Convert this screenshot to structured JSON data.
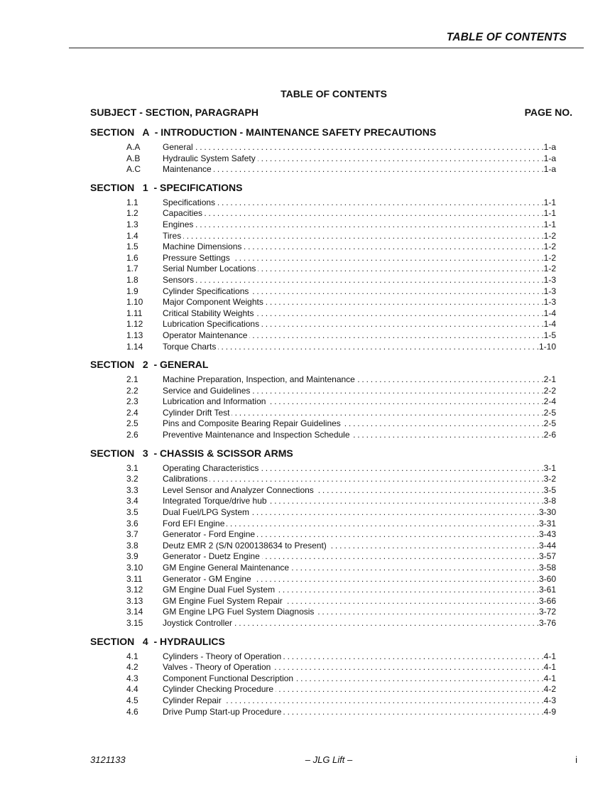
{
  "header": {
    "running_title": "TABLE OF CONTENTS"
  },
  "title": "TABLE OF CONTENTS",
  "columns": {
    "subject": "SUBJECT - SECTION, PARAGRAPH",
    "page": "PAGE NO."
  },
  "sections": [
    {
      "heading": "SECTION   A  - INTRODUCTION - MAINTENANCE SAFETY PRECAUTIONS",
      "entries": [
        {
          "num": "A.A",
          "title": "General",
          "page": "1-a"
        },
        {
          "num": "A.B",
          "title": "Hydraulic System Safety",
          "page": "1-a"
        },
        {
          "num": "A.C",
          "title": "Maintenance",
          "page": "1-a"
        }
      ]
    },
    {
      "heading": "SECTION   1  - SPECIFICATIONS",
      "entries": [
        {
          "num": "1.1",
          "title": "Specifications",
          "page": "1-1"
        },
        {
          "num": "1.2",
          "title": "Capacities",
          "page": "1-1"
        },
        {
          "num": "1.3",
          "title": "Engines",
          "page": "1-1"
        },
        {
          "num": "1.4",
          "title": "Tires",
          "page": "1-2"
        },
        {
          "num": "1.5",
          "title": "Machine Dimensions",
          "page": "1-2"
        },
        {
          "num": "1.6",
          "title": "Pressure Settings",
          "page": "1-2"
        },
        {
          "num": "1.7",
          "title": "Serial Number Locations",
          "page": "1-2"
        },
        {
          "num": "1.8",
          "title": "Sensors",
          "page": "1-3"
        },
        {
          "num": "1.9",
          "title": "Cylinder Specifications",
          "page": "1-3"
        },
        {
          "num": "1.10",
          "title": "Major Component Weights",
          "page": "1-3"
        },
        {
          "num": "1.11",
          "title": "Critical Stability Weights",
          "page": "1-4"
        },
        {
          "num": "1.12",
          "title": "Lubrication Specifications",
          "page": "1-4"
        },
        {
          "num": "1.13",
          "title": "Operator Maintenance",
          "page": "1-5"
        },
        {
          "num": "1.14",
          "title": "Torque Charts",
          "page": "1-10"
        }
      ]
    },
    {
      "heading": "SECTION   2  - GENERAL",
      "entries": [
        {
          "num": "2.1",
          "title": "Machine Preparation, Inspection, and Maintenance",
          "page": "2-1"
        },
        {
          "num": "2.2",
          "title": "Service and Guidelines",
          "page": "2-2"
        },
        {
          "num": "2.3",
          "title": "Lubrication and Information",
          "page": "2-4"
        },
        {
          "num": "2.4",
          "title": "Cylinder Drift Test",
          "page": "2-5"
        },
        {
          "num": "2.5",
          "title": "Pins and Composite Bearing Repair Guidelines",
          "page": "2-5"
        },
        {
          "num": "2.6",
          "title": "Preventive Maintenance and Inspection Schedule",
          "page": "2-6"
        }
      ]
    },
    {
      "heading": "SECTION   3  - CHASSIS & SCISSOR ARMS",
      "entries": [
        {
          "num": "3.1",
          "title": "Operating Characteristics",
          "page": "3-1"
        },
        {
          "num": "3.2",
          "title": "Calibrations",
          "page": "3-2"
        },
        {
          "num": "3.3",
          "title": "Level Sensor and Analyzer Connections",
          "page": "3-5"
        },
        {
          "num": "3.4",
          "title": "Integrated Torque/drive hub",
          "page": "3-8"
        },
        {
          "num": "3.5",
          "title": "Dual Fuel/LPG System",
          "page": "3-30"
        },
        {
          "num": "3.6",
          "title": "Ford EFI Engine",
          "page": "3-31"
        },
        {
          "num": "3.7",
          "title": "Generator - Ford Engine",
          "page": "3-43"
        },
        {
          "num": "3.8",
          "title": "Deutz EMR 2 (S/N 0200138634 to Present)",
          "page": "3-44"
        },
        {
          "num": "3.9",
          "title": "Generator - Duetz Engine",
          "page": "3-57"
        },
        {
          "num": "3.10",
          "title": "GM Engine General Maintenance",
          "page": "3-58"
        },
        {
          "num": "3.11",
          "title": "Generator - GM Engine",
          "page": "3-60"
        },
        {
          "num": "3.12",
          "title": "GM Engine Dual Fuel System",
          "page": "3-61"
        },
        {
          "num": "3.13",
          "title": "GM Engine Fuel System Repair",
          "page": "3-66"
        },
        {
          "num": "3.14",
          "title": "GM Engine LPG Fuel System Diagnosis",
          "page": "3-72"
        },
        {
          "num": "3.15",
          "title": "Joystick Controller",
          "page": "3-76"
        }
      ]
    },
    {
      "heading": "SECTION   4  - HYDRAULICS",
      "entries": [
        {
          "num": "4.1",
          "title": "Cylinders - Theory of Operation",
          "page": "4-1"
        },
        {
          "num": "4.2",
          "title": "Valves - Theory of Operation",
          "page": "4-1"
        },
        {
          "num": "4.3",
          "title": "Component Functional Description",
          "page": "4-1"
        },
        {
          "num": "4.4",
          "title": "Cylinder Checking Procedure",
          "page": "4-2"
        },
        {
          "num": "4.5",
          "title": "Cylinder Repair",
          "page": "4-3"
        },
        {
          "num": "4.6",
          "title": "Drive Pump Start-up Procedure",
          "page": "4-9"
        }
      ]
    }
  ],
  "footer": {
    "doc_number": "3121133",
    "brand": "– JLG Lift –",
    "page": "i"
  }
}
